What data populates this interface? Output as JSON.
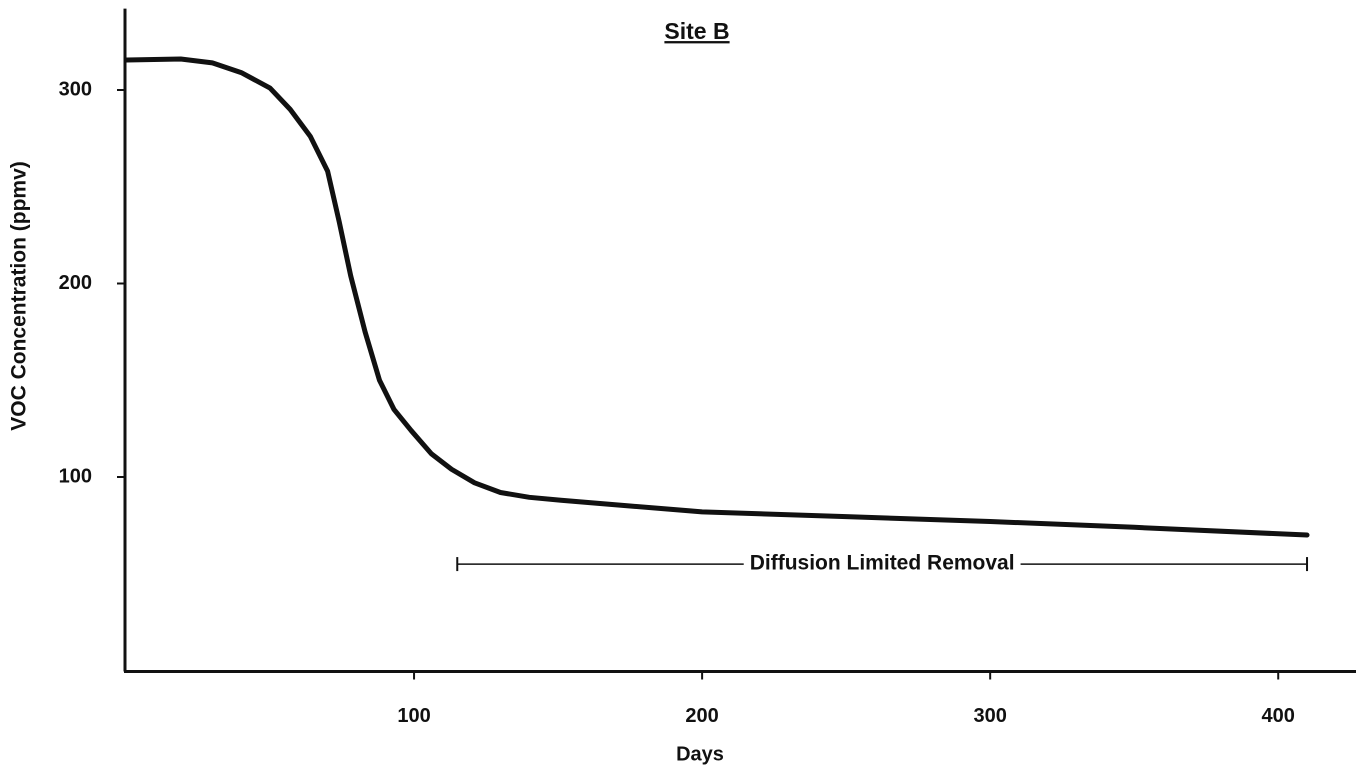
{
  "chart_data": {
    "type": "line",
    "title": "Site B",
    "x_label": "Days",
    "y_label": "VOC Concentration (ppmv)",
    "xlim": [
      0,
      427
    ],
    "ylim": [
      0,
      340
    ],
    "xticks": [
      100,
      200,
      300,
      400
    ],
    "yticks": [
      100,
      200,
      300
    ],
    "grid": false,
    "x": [
      0,
      19,
      30,
      40,
      50,
      57,
      64,
      70,
      74,
      78,
      83,
      88,
      93,
      99,
      106,
      113,
      121,
      130,
      140,
      151,
      175,
      200,
      250,
      300,
      350,
      410
    ],
    "series": [
      {
        "name": "VOC Concentration",
        "color": "#111111",
        "values": [
          315.5,
          316,
          314,
          309,
          301,
          290,
          276,
          258,
          232,
          204,
          175,
          150,
          135,
          124,
          112,
          104,
          97,
          92,
          89.5,
          88,
          85,
          82,
          79.5,
          77,
          74,
          70
        ]
      }
    ],
    "annotation": {
      "text": "Diffusion Limited Removal",
      "x_start": 115,
      "x_end": 410,
      "y": 55
    }
  }
}
